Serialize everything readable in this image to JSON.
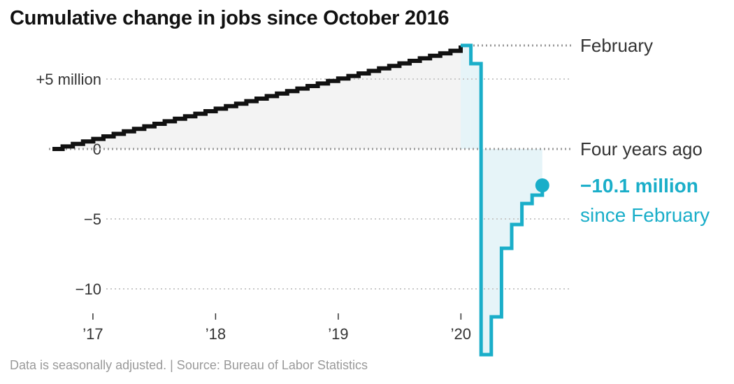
{
  "title": "Cumulative change in jobs since October 2016",
  "source": "Data is seasonally adjusted. | Source: Bureau of Labor Statistics",
  "colors": {
    "pre_pandemic_line": "#111111",
    "pandemic_line": "#1aaec9",
    "pre_fill": "#f3f3f3",
    "post_fill": "#e6f4f8",
    "reference_line": "#999999"
  },
  "chart_data": {
    "type": "line",
    "step": true,
    "title": "Cumulative change in jobs since October 2016",
    "y_unit": "millions of jobs",
    "ylim": [
      -14.7,
      7.4
    ],
    "xlim": [
      2016.67,
      2020.83
    ],
    "yticks": [
      {
        "value": 5,
        "label": "+5 million"
      },
      {
        "value": 0,
        "label": "0"
      },
      {
        "value": -5,
        "label": "−5"
      },
      {
        "value": -10,
        "label": "−10"
      }
    ],
    "xticks": [
      {
        "value": 2017,
        "label": "’17"
      },
      {
        "value": 2018,
        "label": "’18"
      },
      {
        "value": 2019,
        "label": "’19"
      },
      {
        "value": 2020,
        "label": "’20"
      }
    ],
    "reference_lines": [
      {
        "value": 7.4,
        "label": "February"
      },
      {
        "value": 0,
        "label": "Four years ago"
      }
    ],
    "pre_pandemic_monthly_change": 0.18,
    "pre_pandemic_months": 40,
    "pandemic_series": [
      {
        "month": "2020-02",
        "value": 7.4
      },
      {
        "month": "2020-03",
        "value": 6.1
      },
      {
        "month": "2020-04",
        "value": -14.7
      },
      {
        "month": "2020-05",
        "value": -12.0
      },
      {
        "month": "2020-06",
        "value": -7.1
      },
      {
        "month": "2020-07",
        "value": -5.4
      },
      {
        "month": "2020-08",
        "value": -3.9
      },
      {
        "month": "2020-09",
        "value": -3.3
      },
      {
        "month": "2020-10",
        "value": -2.6
      }
    ],
    "endpoint_label": {
      "value": "−10.1 million",
      "sub": "since February"
    }
  }
}
